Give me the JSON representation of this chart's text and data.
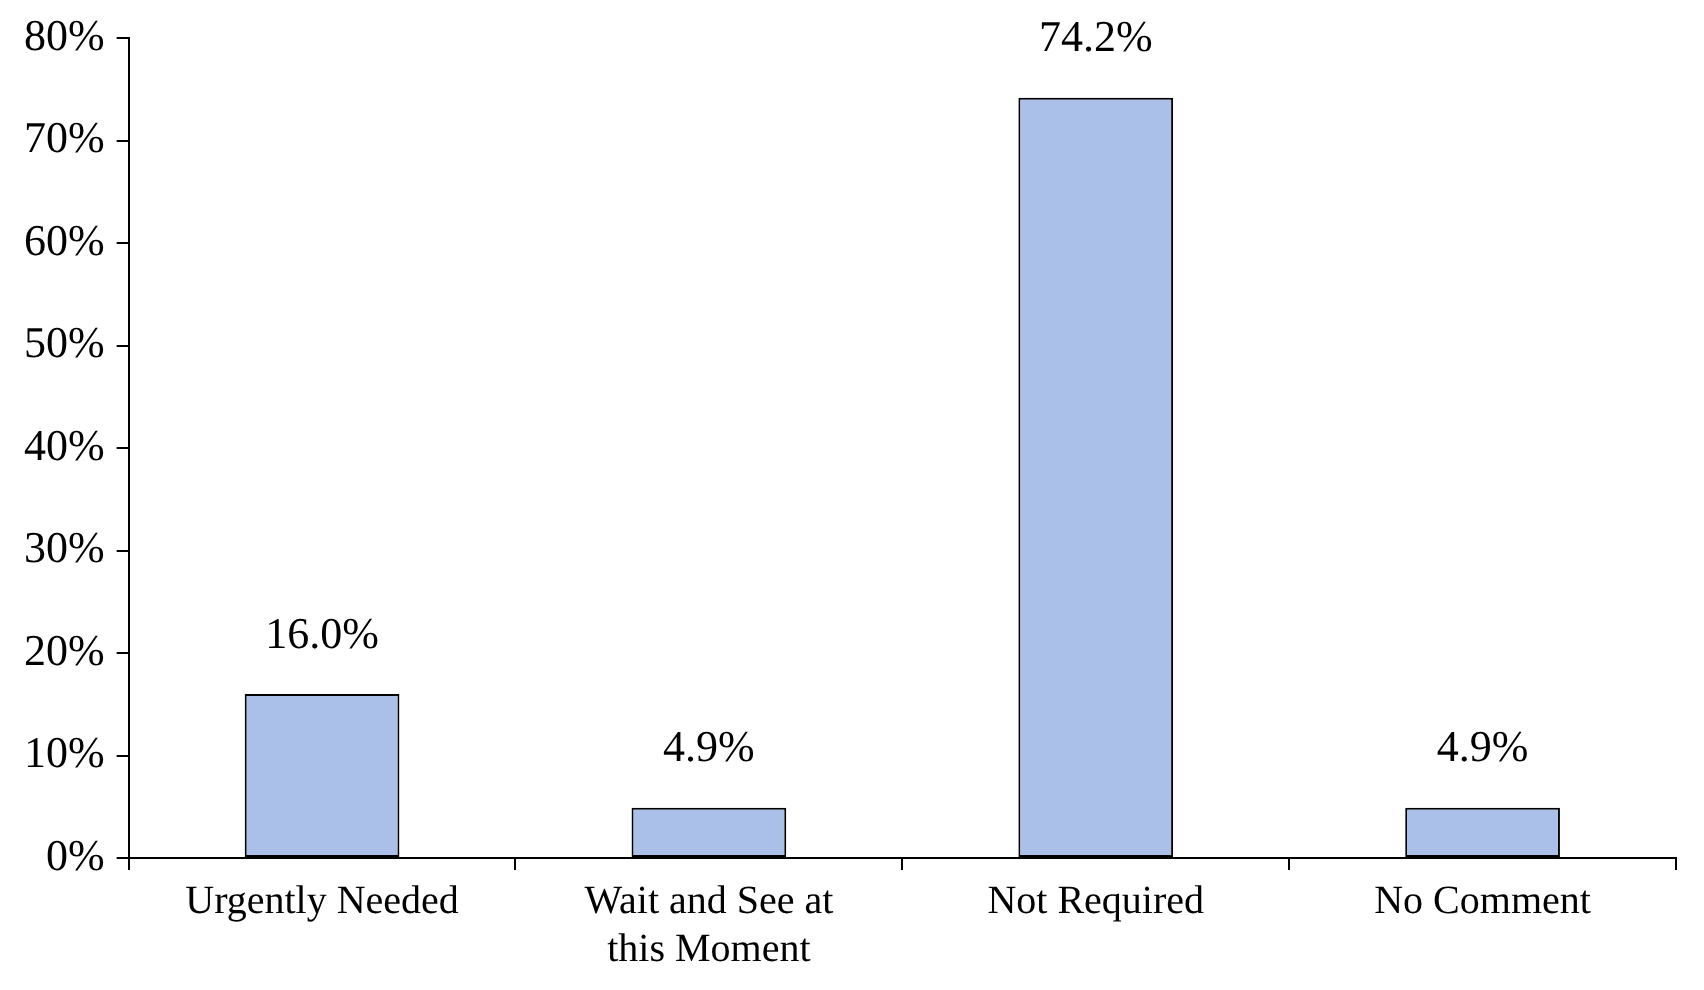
{
  "chart_data": {
    "type": "bar",
    "categories": [
      "Urgently Needed",
      "Wait and See at this Moment",
      "Not Required",
      "No Comment"
    ],
    "values": [
      16.0,
      4.9,
      74.2,
      4.9
    ],
    "value_labels": [
      "16.0%",
      "4.9%",
      "74.2%",
      "4.9%"
    ],
    "color": "#abc0e8",
    "ylim": [
      0,
      80
    ],
    "yticks": [
      {
        "value": 0,
        "label": "0%"
      },
      {
        "value": 10,
        "label": "10%"
      },
      {
        "value": 20,
        "label": "20%"
      },
      {
        "value": 30,
        "label": "30%"
      },
      {
        "value": 40,
        "label": "40%"
      },
      {
        "value": 50,
        "label": "50%"
      },
      {
        "value": 60,
        "label": "60%"
      },
      {
        "value": 70,
        "label": "70%"
      },
      {
        "value": 80,
        "label": "80%"
      }
    ],
    "grid": false,
    "legend": false
  }
}
